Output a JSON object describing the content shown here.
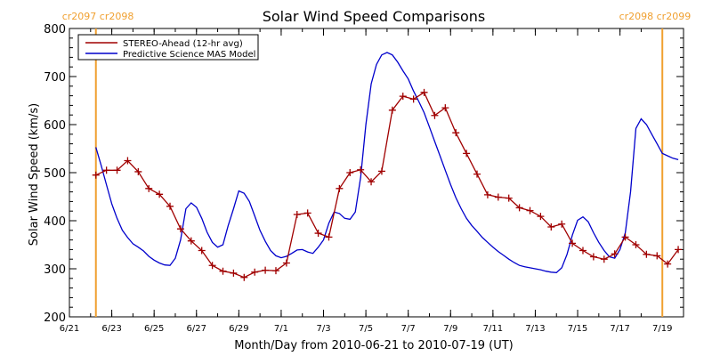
{
  "chart_data": {
    "type": "line",
    "title": "Solar Wind Speed Comparisons",
    "xlabel": "Month/Day from 2010-06-21 to 2010-07-19 (UT)",
    "ylabel": "Solar Wind Speed (km/s)",
    "xlim": [
      "2010-06-21",
      "2010-07-19"
    ],
    "ylim": [
      200,
      800
    ],
    "x_ticks": [
      {
        "date": "2010-06-21",
        "label": "6/21"
      },
      {
        "date": "2010-06-23",
        "label": "6/23"
      },
      {
        "date": "2010-06-25",
        "label": "6/25"
      },
      {
        "date": "2010-06-27",
        "label": "6/27"
      },
      {
        "date": "2010-06-29",
        "label": "6/29"
      },
      {
        "date": "2010-07-01",
        "label": "7/1"
      },
      {
        "date": "2010-07-03",
        "label": "7/3"
      },
      {
        "date": "2010-07-05",
        "label": "7/5"
      },
      {
        "date": "2010-07-07",
        "label": "7/7"
      },
      {
        "date": "2010-07-09",
        "label": "7/9"
      },
      {
        "date": "2010-07-11",
        "label": "7/11"
      },
      {
        "date": "2010-07-13",
        "label": "7/13"
      },
      {
        "date": "2010-07-15",
        "label": "7/15"
      },
      {
        "date": "2010-07-17",
        "label": "7/17"
      },
      {
        "date": "2010-07-19",
        "label": "7/19"
      }
    ],
    "y_ticks": [
      200,
      300,
      400,
      500,
      600,
      700,
      800
    ],
    "grid": false,
    "legend_position": "top-left",
    "rotation_markers": [
      {
        "date": "2010-06-22T06:00",
        "label": "cr2097 cr2098",
        "color": "#f0a030"
      },
      {
        "date": "2010-07-19T00:00",
        "label": "cr2098 cr2099",
        "color": "#f0a030"
      }
    ],
    "series": [
      {
        "name": "STEREO-Ahead (12-hr avg)",
        "color": "#a00000",
        "marker": "+",
        "points": [
          [
            "2010-06-22T06:00",
            495
          ],
          [
            "2010-06-22T18:00",
            505
          ],
          [
            "2010-06-23T06:00",
            505
          ],
          [
            "2010-06-23T18:00",
            525
          ],
          [
            "2010-06-24T06:00",
            502
          ],
          [
            "2010-06-24T18:00",
            467
          ],
          [
            "2010-06-25T06:00",
            455
          ],
          [
            "2010-06-25T18:00",
            430
          ],
          [
            "2010-06-26T06:00",
            383
          ],
          [
            "2010-06-26T18:00",
            358
          ],
          [
            "2010-06-27T06:00",
            338
          ],
          [
            "2010-06-27T18:00",
            307
          ],
          [
            "2010-06-28T06:00",
            295
          ],
          [
            "2010-06-28T18:00",
            291
          ],
          [
            "2010-06-29T06:00",
            282
          ],
          [
            "2010-06-29T18:00",
            293
          ],
          [
            "2010-06-30T06:00",
            297
          ],
          [
            "2010-06-30T18:00",
            296
          ],
          [
            "2010-07-01T06:00",
            312
          ],
          [
            "2010-07-01T18:00",
            413
          ],
          [
            "2010-07-02T06:00",
            416
          ],
          [
            "2010-07-02T18:00",
            374
          ],
          [
            "2010-07-03T06:00",
            366
          ],
          [
            "2010-07-03T18:00",
            467
          ],
          [
            "2010-07-04T06:00",
            500
          ],
          [
            "2010-07-04T18:00",
            506
          ],
          [
            "2010-07-05T06:00",
            481
          ],
          [
            "2010-07-05T18:00",
            503
          ],
          [
            "2010-07-06T06:00",
            630
          ],
          [
            "2010-07-06T18:00",
            659
          ],
          [
            "2010-07-07T06:00",
            653
          ],
          [
            "2010-07-07T18:00",
            667
          ],
          [
            "2010-07-08T06:00",
            619
          ],
          [
            "2010-07-08T18:00",
            635
          ],
          [
            "2010-07-09T06:00",
            583
          ],
          [
            "2010-07-09T18:00",
            540
          ],
          [
            "2010-07-10T06:00",
            497
          ],
          [
            "2010-07-10T18:00",
            454
          ],
          [
            "2010-07-11T06:00",
            449
          ],
          [
            "2010-07-11T18:00",
            447
          ],
          [
            "2010-07-12T06:00",
            427
          ],
          [
            "2010-07-12T18:00",
            421
          ],
          [
            "2010-07-13T06:00",
            409
          ],
          [
            "2010-07-13T18:00",
            387
          ],
          [
            "2010-07-14T06:00",
            393
          ],
          [
            "2010-07-14T18:00",
            353
          ],
          [
            "2010-07-15T06:00",
            338
          ],
          [
            "2010-07-15T18:00",
            325
          ],
          [
            "2010-07-16T06:00",
            320
          ],
          [
            "2010-07-16T18:00",
            331
          ],
          [
            "2010-07-17T06:00",
            366
          ],
          [
            "2010-07-17T18:00",
            350
          ],
          [
            "2010-07-18T06:00",
            330
          ],
          [
            "2010-07-18T18:00",
            327
          ],
          [
            "2010-07-19T06:00",
            310
          ],
          [
            "2010-07-19T18:00",
            340
          ]
        ]
      },
      {
        "name": "Predictive Science MAS Model",
        "color": "#0000cc",
        "points": [
          [
            "2010-06-22T06:00",
            553
          ],
          [
            "2010-06-22T12:00",
            515
          ],
          [
            "2010-06-22T18:00",
            475
          ],
          [
            "2010-06-23T00:00",
            435
          ],
          [
            "2010-06-23T06:00",
            405
          ],
          [
            "2010-06-23T12:00",
            380
          ],
          [
            "2010-06-23T18:00",
            365
          ],
          [
            "2010-06-24T00:00",
            352
          ],
          [
            "2010-06-24T06:00",
            345
          ],
          [
            "2010-06-24T12:00",
            337
          ],
          [
            "2010-06-24T18:00",
            326
          ],
          [
            "2010-06-25T00:00",
            318
          ],
          [
            "2010-06-25T06:00",
            312
          ],
          [
            "2010-06-25T12:00",
            308
          ],
          [
            "2010-06-25T18:00",
            307
          ],
          [
            "2010-06-26T00:00",
            322
          ],
          [
            "2010-06-26T06:00",
            360
          ],
          [
            "2010-06-26T12:00",
            425
          ],
          [
            "2010-06-26T18:00",
            437
          ],
          [
            "2010-06-27T00:00",
            428
          ],
          [
            "2010-06-27T06:00",
            405
          ],
          [
            "2010-06-27T12:00",
            376
          ],
          [
            "2010-06-27T18:00",
            355
          ],
          [
            "2010-06-28T00:00",
            345
          ],
          [
            "2010-06-28T06:00",
            350
          ],
          [
            "2010-06-28T12:00",
            390
          ],
          [
            "2010-06-28T18:00",
            425
          ],
          [
            "2010-06-29T00:00",
            462
          ],
          [
            "2010-06-29T06:00",
            457
          ],
          [
            "2010-06-29T12:00",
            440
          ],
          [
            "2010-06-29T18:00",
            410
          ],
          [
            "2010-06-30T00:00",
            380
          ],
          [
            "2010-06-30T06:00",
            357
          ],
          [
            "2010-06-30T12:00",
            338
          ],
          [
            "2010-06-30T18:00",
            327
          ],
          [
            "2010-07-01T00:00",
            323
          ],
          [
            "2010-07-01T06:00",
            326
          ],
          [
            "2010-07-01T12:00",
            332
          ],
          [
            "2010-07-01T18:00",
            339
          ],
          [
            "2010-07-02T00:00",
            340
          ],
          [
            "2010-07-02T06:00",
            335
          ],
          [
            "2010-07-02T12:00",
            332
          ],
          [
            "2010-07-02T18:00",
            345
          ],
          [
            "2010-07-03T00:00",
            360
          ],
          [
            "2010-07-03T06:00",
            395
          ],
          [
            "2010-07-03T12:00",
            418
          ],
          [
            "2010-07-03T18:00",
            415
          ],
          [
            "2010-07-04T00:00",
            405
          ],
          [
            "2010-07-04T06:00",
            403
          ],
          [
            "2010-07-04T12:00",
            418
          ],
          [
            "2010-07-04T18:00",
            490
          ],
          [
            "2010-07-05T00:00",
            600
          ],
          [
            "2010-07-05T06:00",
            685
          ],
          [
            "2010-07-05T12:00",
            725
          ],
          [
            "2010-07-05T18:00",
            745
          ],
          [
            "2010-07-06T00:00",
            750
          ],
          [
            "2010-07-06T06:00",
            745
          ],
          [
            "2010-07-06T12:00",
            730
          ],
          [
            "2010-07-06T18:00",
            712
          ],
          [
            "2010-07-07T00:00",
            695
          ],
          [
            "2010-07-07T06:00",
            670
          ],
          [
            "2010-07-07T12:00",
            648
          ],
          [
            "2010-07-07T18:00",
            625
          ],
          [
            "2010-07-08T00:00",
            595
          ],
          [
            "2010-07-08T06:00",
            565
          ],
          [
            "2010-07-08T12:00",
            535
          ],
          [
            "2010-07-08T18:00",
            505
          ],
          [
            "2010-07-09T00:00",
            475
          ],
          [
            "2010-07-09T06:00",
            448
          ],
          [
            "2010-07-09T12:00",
            425
          ],
          [
            "2010-07-09T18:00",
            405
          ],
          [
            "2010-07-10T00:00",
            390
          ],
          [
            "2010-07-10T06:00",
            378
          ],
          [
            "2010-07-10T12:00",
            365
          ],
          [
            "2010-07-10T18:00",
            355
          ],
          [
            "2010-07-11T00:00",
            345
          ],
          [
            "2010-07-11T06:00",
            336
          ],
          [
            "2010-07-11T12:00",
            328
          ],
          [
            "2010-07-11T18:00",
            320
          ],
          [
            "2010-07-12T00:00",
            313
          ],
          [
            "2010-07-12T06:00",
            307
          ],
          [
            "2010-07-12T12:00",
            304
          ],
          [
            "2010-07-12T18:00",
            302
          ],
          [
            "2010-07-13T00:00",
            300
          ],
          [
            "2010-07-13T06:00",
            298
          ],
          [
            "2010-07-13T12:00",
            295
          ],
          [
            "2010-07-13T18:00",
            293
          ],
          [
            "2010-07-14T00:00",
            292
          ],
          [
            "2010-07-14T06:00",
            302
          ],
          [
            "2010-07-14T12:00",
            330
          ],
          [
            "2010-07-14T18:00",
            370
          ],
          [
            "2010-07-15T00:00",
            401
          ],
          [
            "2010-07-15T06:00",
            408
          ],
          [
            "2010-07-15T12:00",
            398
          ],
          [
            "2010-07-15T18:00",
            375
          ],
          [
            "2010-07-16T00:00",
            355
          ],
          [
            "2010-07-16T06:00",
            338
          ],
          [
            "2010-07-16T12:00",
            325
          ],
          [
            "2010-07-16T18:00",
            322
          ],
          [
            "2010-07-17T00:00",
            340
          ],
          [
            "2010-07-17T06:00",
            375
          ],
          [
            "2010-07-17T12:00",
            460
          ],
          [
            "2010-07-17T18:00",
            592
          ],
          [
            "2010-07-18T00:00",
            612
          ],
          [
            "2010-07-18T06:00",
            600
          ],
          [
            "2010-07-18T12:00",
            580
          ],
          [
            "2010-07-18T18:00",
            560
          ],
          [
            "2010-07-19T00:00",
            540
          ],
          [
            "2010-07-19T06:00",
            535
          ],
          [
            "2010-07-19T12:00",
            530
          ],
          [
            "2010-07-19T18:00",
            527
          ]
        ]
      }
    ]
  }
}
